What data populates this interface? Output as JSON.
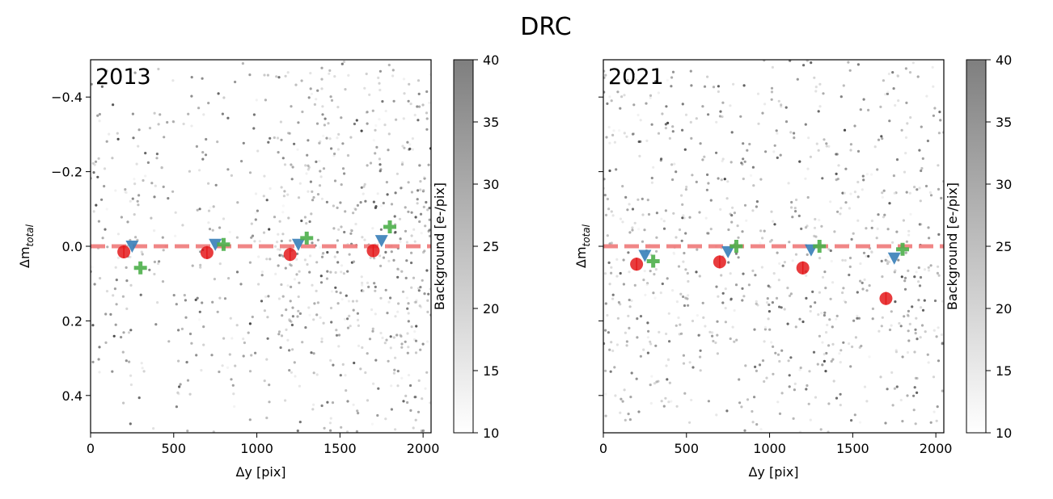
{
  "figure": {
    "title": "DRC"
  },
  "colors": {
    "red": "#e41a1c",
    "blue": "#377eb8",
    "green": "#4daf4a",
    "ref_line": "#f08080",
    "axis": "#000000"
  },
  "chart_data": [
    {
      "type": "scatter",
      "panel_label": "2013",
      "xlabel": "Δy [pix]",
      "ylabel": "Δm_total",
      "ylabel_main": "Δm",
      "ylabel_sub": "total",
      "xlim": [
        0,
        2048
      ],
      "ylim": [
        0.5,
        -0.5
      ],
      "xticks": [
        0,
        500,
        1000,
        1500,
        2000
      ],
      "xtick_labels": [
        "0",
        "500",
        "1000",
        "1500",
        "2000"
      ],
      "yticks": [
        -0.4,
        -0.2,
        0.0,
        0.2,
        0.4
      ],
      "ytick_labels": [
        "−0.4",
        "−0.2",
        "0.0",
        "0.2",
        "0.4"
      ],
      "reference_line": 0.0,
      "colorbar": {
        "label": "Background [e-/pix]",
        "range": [
          10,
          40
        ],
        "ticks": [
          10,
          15,
          20,
          25,
          30,
          35,
          40
        ],
        "tick_labels": [
          "10",
          "15",
          "20",
          "25",
          "30",
          "35",
          "40"
        ]
      },
      "background_points": {
        "count": 900,
        "seed": 2013,
        "density_bias": "higher on right half"
      },
      "series": [
        {
          "name": "red circles",
          "marker": "circle",
          "x": [
            200,
            700,
            1200,
            1700
          ],
          "y": [
            0.015,
            0.017,
            0.022,
            0.012
          ]
        },
        {
          "name": "blue triangles",
          "marker": "triangle-down",
          "x": [
            250,
            750,
            1250,
            1750
          ],
          "y": [
            0.0,
            -0.005,
            -0.005,
            -0.015
          ]
        },
        {
          "name": "green plus",
          "marker": "plus",
          "x": [
            300,
            800,
            1300,
            1800
          ],
          "y": [
            0.058,
            -0.005,
            -0.022,
            -0.052
          ]
        }
      ]
    },
    {
      "type": "scatter",
      "panel_label": "2021",
      "xlabel": "Δy [pix]",
      "ylabel": "Δm_total",
      "ylabel_main": "Δm",
      "ylabel_sub": "total",
      "xlim": [
        0,
        2048
      ],
      "ylim": [
        0.5,
        -0.5
      ],
      "xticks": [
        0,
        500,
        1000,
        1500,
        2000
      ],
      "xtick_labels": [
        "0",
        "500",
        "1000",
        "1500",
        "2000"
      ],
      "yticks": [
        -0.4,
        -0.2,
        0.0,
        0.2,
        0.4
      ],
      "ytick_labels": [],
      "reference_line": 0.0,
      "colorbar": {
        "label": "Background [e-/pix]",
        "range": [
          10,
          40
        ],
        "ticks": [
          10,
          15,
          20,
          25,
          30,
          35,
          40
        ],
        "tick_labels": [
          "10",
          "15",
          "20",
          "25",
          "30",
          "35",
          "40"
        ]
      },
      "background_points": {
        "count": 900,
        "seed": 2021,
        "density_bias": "uniform"
      },
      "series": [
        {
          "name": "red circles",
          "marker": "circle",
          "x": [
            200,
            700,
            1200,
            1700
          ],
          "y": [
            0.048,
            0.042,
            0.058,
            0.14
          ]
        },
        {
          "name": "blue triangles",
          "marker": "triangle-down",
          "x": [
            250,
            750,
            1250,
            1750
          ],
          "y": [
            0.025,
            0.015,
            0.01,
            0.032
          ]
        },
        {
          "name": "green plus",
          "marker": "plus",
          "x": [
            300,
            800,
            1300,
            1800
          ],
          "y": [
            0.04,
            0.0,
            0.0,
            0.008
          ]
        }
      ]
    }
  ]
}
